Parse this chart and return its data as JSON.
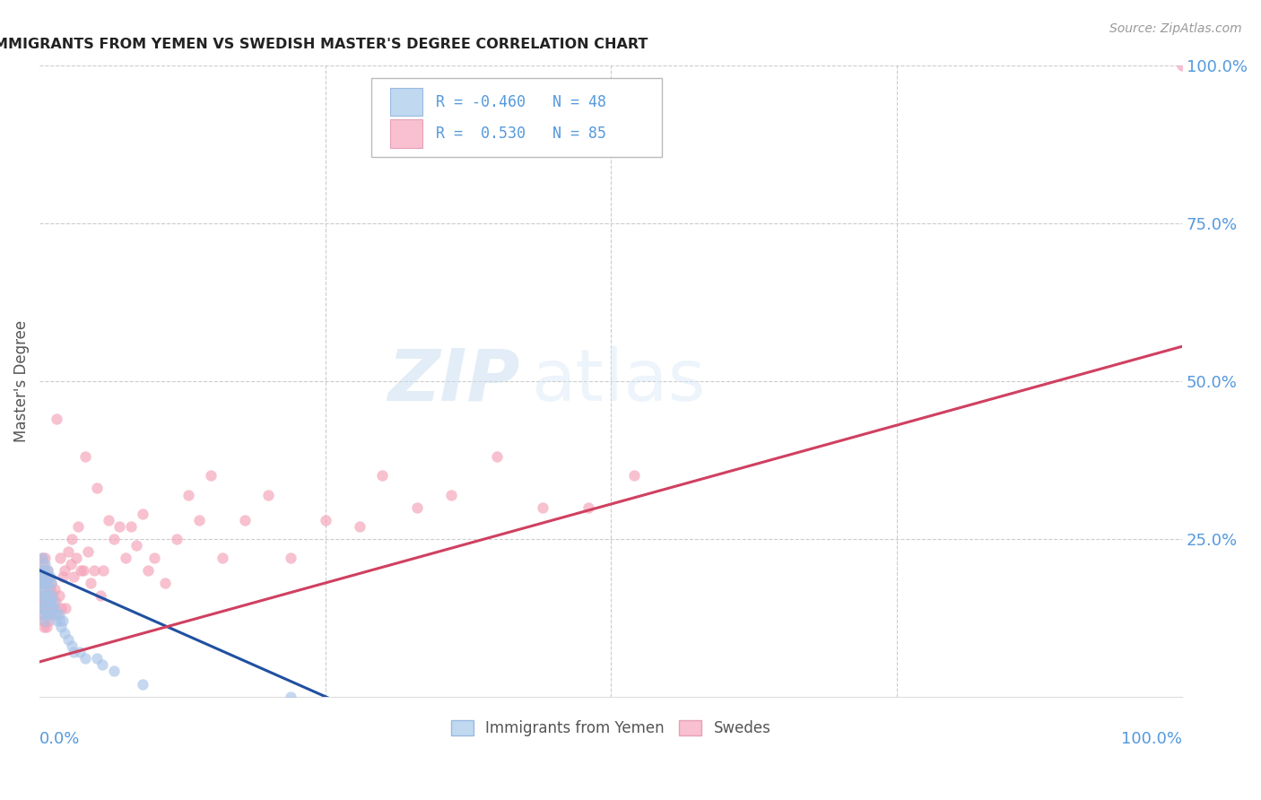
{
  "title": "IMMIGRANTS FROM YEMEN VS SWEDISH MASTER'S DEGREE CORRELATION CHART",
  "source": "Source: ZipAtlas.com",
  "ylabel": "Master's Degree",
  "watermark_zip": "ZIP",
  "watermark_atlas": "atlas",
  "blue_R": -0.46,
  "blue_N": 48,
  "pink_R": 0.53,
  "pink_N": 85,
  "blue_label": "Immigrants from Yemen",
  "pink_label": "Swedes",
  "blue_color": "#a8c4e8",
  "pink_color": "#f4a0b8",
  "blue_edge_color": "#7090c0",
  "pink_edge_color": "#d07090",
  "blue_line_color": "#2050a0",
  "pink_line_color": "#d04060",
  "axis_label_color": "#5599dd",
  "title_color": "#222222",
  "grid_color": "#cccccc",
  "background_color": "#ffffff",
  "blue_x": [
    0.001,
    0.001,
    0.001,
    0.002,
    0.002,
    0.002,
    0.002,
    0.003,
    0.003,
    0.003,
    0.004,
    0.004,
    0.004,
    0.005,
    0.005,
    0.005,
    0.005,
    0.006,
    0.006,
    0.007,
    0.007,
    0.007,
    0.008,
    0.008,
    0.009,
    0.009,
    0.01,
    0.01,
    0.011,
    0.012,
    0.013,
    0.014,
    0.015,
    0.017,
    0.018,
    0.019,
    0.02,
    0.022,
    0.025,
    0.028,
    0.03,
    0.035,
    0.04,
    0.05,
    0.055,
    0.065,
    0.09,
    0.22
  ],
  "blue_y": [
    0.18,
    0.16,
    0.14,
    0.22,
    0.2,
    0.18,
    0.15,
    0.19,
    0.17,
    0.14,
    0.2,
    0.18,
    0.13,
    0.21,
    0.19,
    0.16,
    0.12,
    0.18,
    0.15,
    0.2,
    0.17,
    0.13,
    0.16,
    0.13,
    0.19,
    0.15,
    0.18,
    0.14,
    0.16,
    0.15,
    0.14,
    0.13,
    0.12,
    0.13,
    0.12,
    0.11,
    0.12,
    0.1,
    0.09,
    0.08,
    0.07,
    0.07,
    0.06,
    0.06,
    0.05,
    0.04,
    0.02,
    0.0
  ],
  "pink_x": [
    0.001,
    0.001,
    0.001,
    0.002,
    0.002,
    0.002,
    0.003,
    0.003,
    0.003,
    0.003,
    0.004,
    0.004,
    0.004,
    0.004,
    0.005,
    0.005,
    0.005,
    0.006,
    0.006,
    0.006,
    0.007,
    0.007,
    0.007,
    0.008,
    0.008,
    0.008,
    0.009,
    0.009,
    0.01,
    0.01,
    0.011,
    0.012,
    0.013,
    0.014,
    0.015,
    0.016,
    0.017,
    0.018,
    0.019,
    0.02,
    0.022,
    0.023,
    0.025,
    0.027,
    0.028,
    0.03,
    0.032,
    0.034,
    0.036,
    0.038,
    0.04,
    0.042,
    0.045,
    0.048,
    0.05,
    0.053,
    0.056,
    0.06,
    0.065,
    0.07,
    0.075,
    0.08,
    0.085,
    0.09,
    0.095,
    0.1,
    0.11,
    0.12,
    0.13,
    0.14,
    0.15,
    0.16,
    0.18,
    0.2,
    0.22,
    0.25,
    0.28,
    0.3,
    0.33,
    0.36,
    0.4,
    0.44,
    0.48,
    0.52,
    1.0
  ],
  "pink_y": [
    0.18,
    0.16,
    0.13,
    0.22,
    0.19,
    0.15,
    0.21,
    0.18,
    0.15,
    0.12,
    0.2,
    0.17,
    0.14,
    0.11,
    0.22,
    0.19,
    0.15,
    0.18,
    0.14,
    0.11,
    0.2,
    0.16,
    0.13,
    0.19,
    0.15,
    0.12,
    0.17,
    0.13,
    0.18,
    0.14,
    0.16,
    0.14,
    0.17,
    0.15,
    0.44,
    0.13,
    0.16,
    0.22,
    0.14,
    0.19,
    0.2,
    0.14,
    0.23,
    0.21,
    0.25,
    0.19,
    0.22,
    0.27,
    0.2,
    0.2,
    0.38,
    0.23,
    0.18,
    0.2,
    0.33,
    0.16,
    0.2,
    0.28,
    0.25,
    0.27,
    0.22,
    0.27,
    0.24,
    0.29,
    0.2,
    0.22,
    0.18,
    0.25,
    0.32,
    0.28,
    0.35,
    0.22,
    0.28,
    0.32,
    0.22,
    0.28,
    0.27,
    0.35,
    0.3,
    0.32,
    0.38,
    0.3,
    0.3,
    0.35,
    1.0
  ]
}
